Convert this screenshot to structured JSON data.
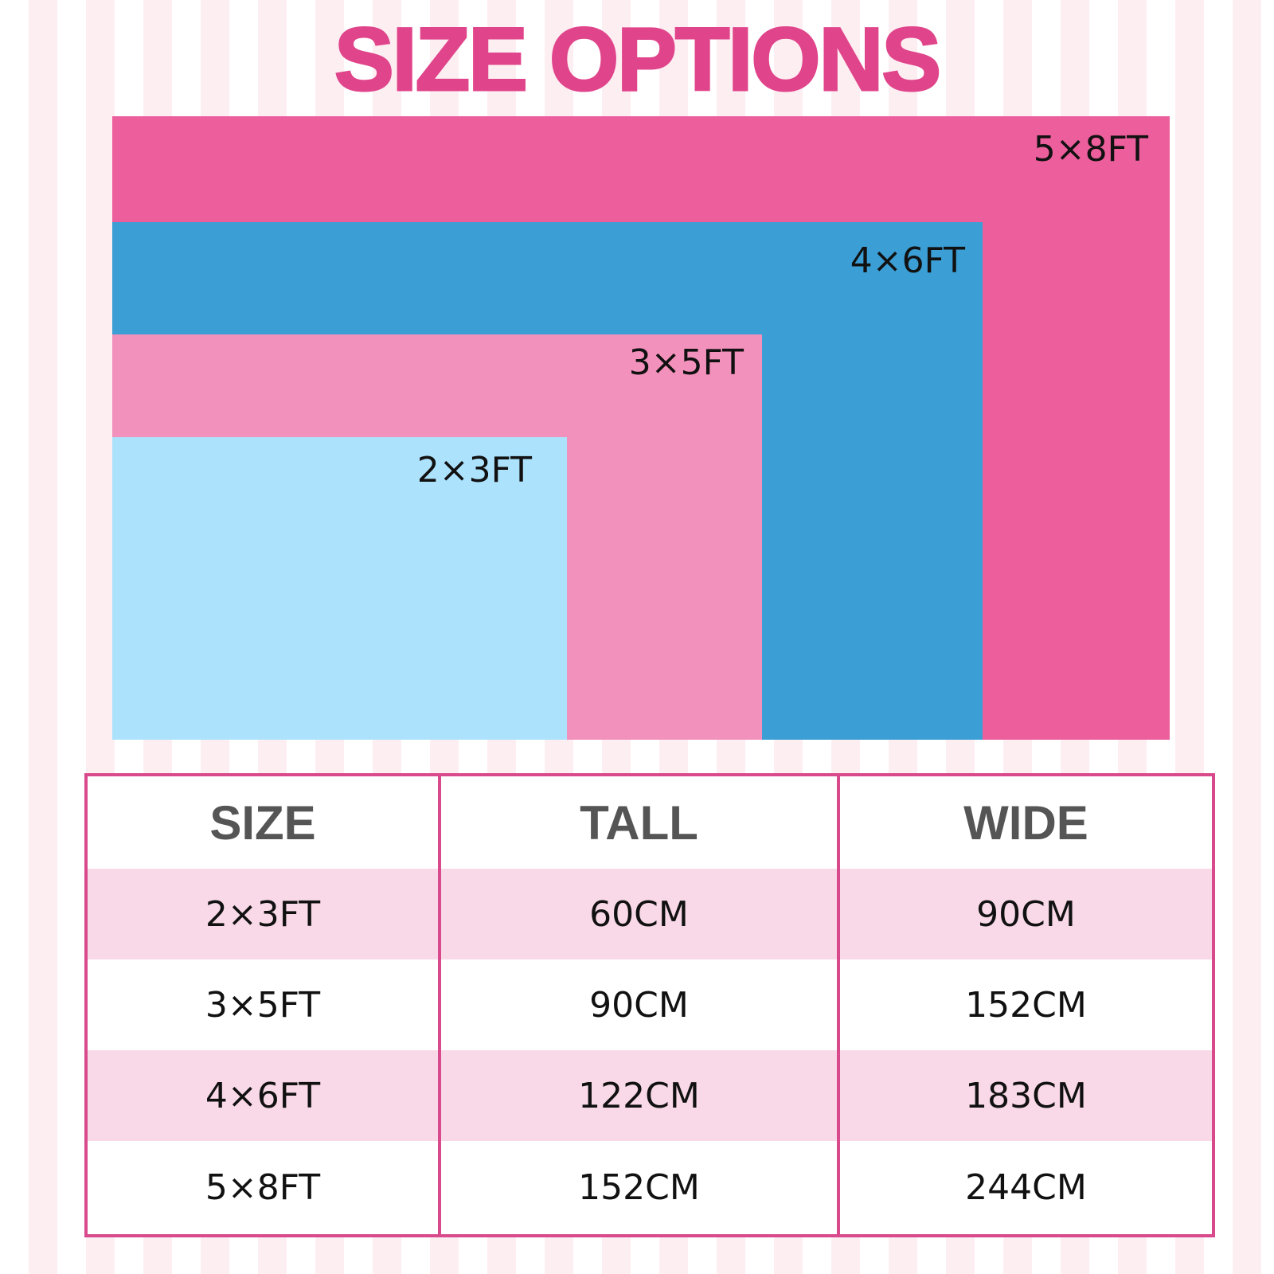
{
  "header": {
    "title": "SIZE OPTIONS"
  },
  "diagram": {
    "labels": [
      "5×8FT",
      "4×6FT",
      "3×5FT",
      "2×3FT"
    ]
  },
  "table": {
    "header": [
      "SIZE",
      "TALL",
      "WIDE"
    ],
    "rows": [
      [
        "2×3FT",
        "60CM",
        "90CM"
      ],
      [
        "3×5FT",
        "90CM",
        "152CM"
      ],
      [
        "4×6FT",
        "122CM",
        "183CM"
      ],
      [
        "5×8FT",
        "152CM",
        "244CM"
      ]
    ]
  }
}
